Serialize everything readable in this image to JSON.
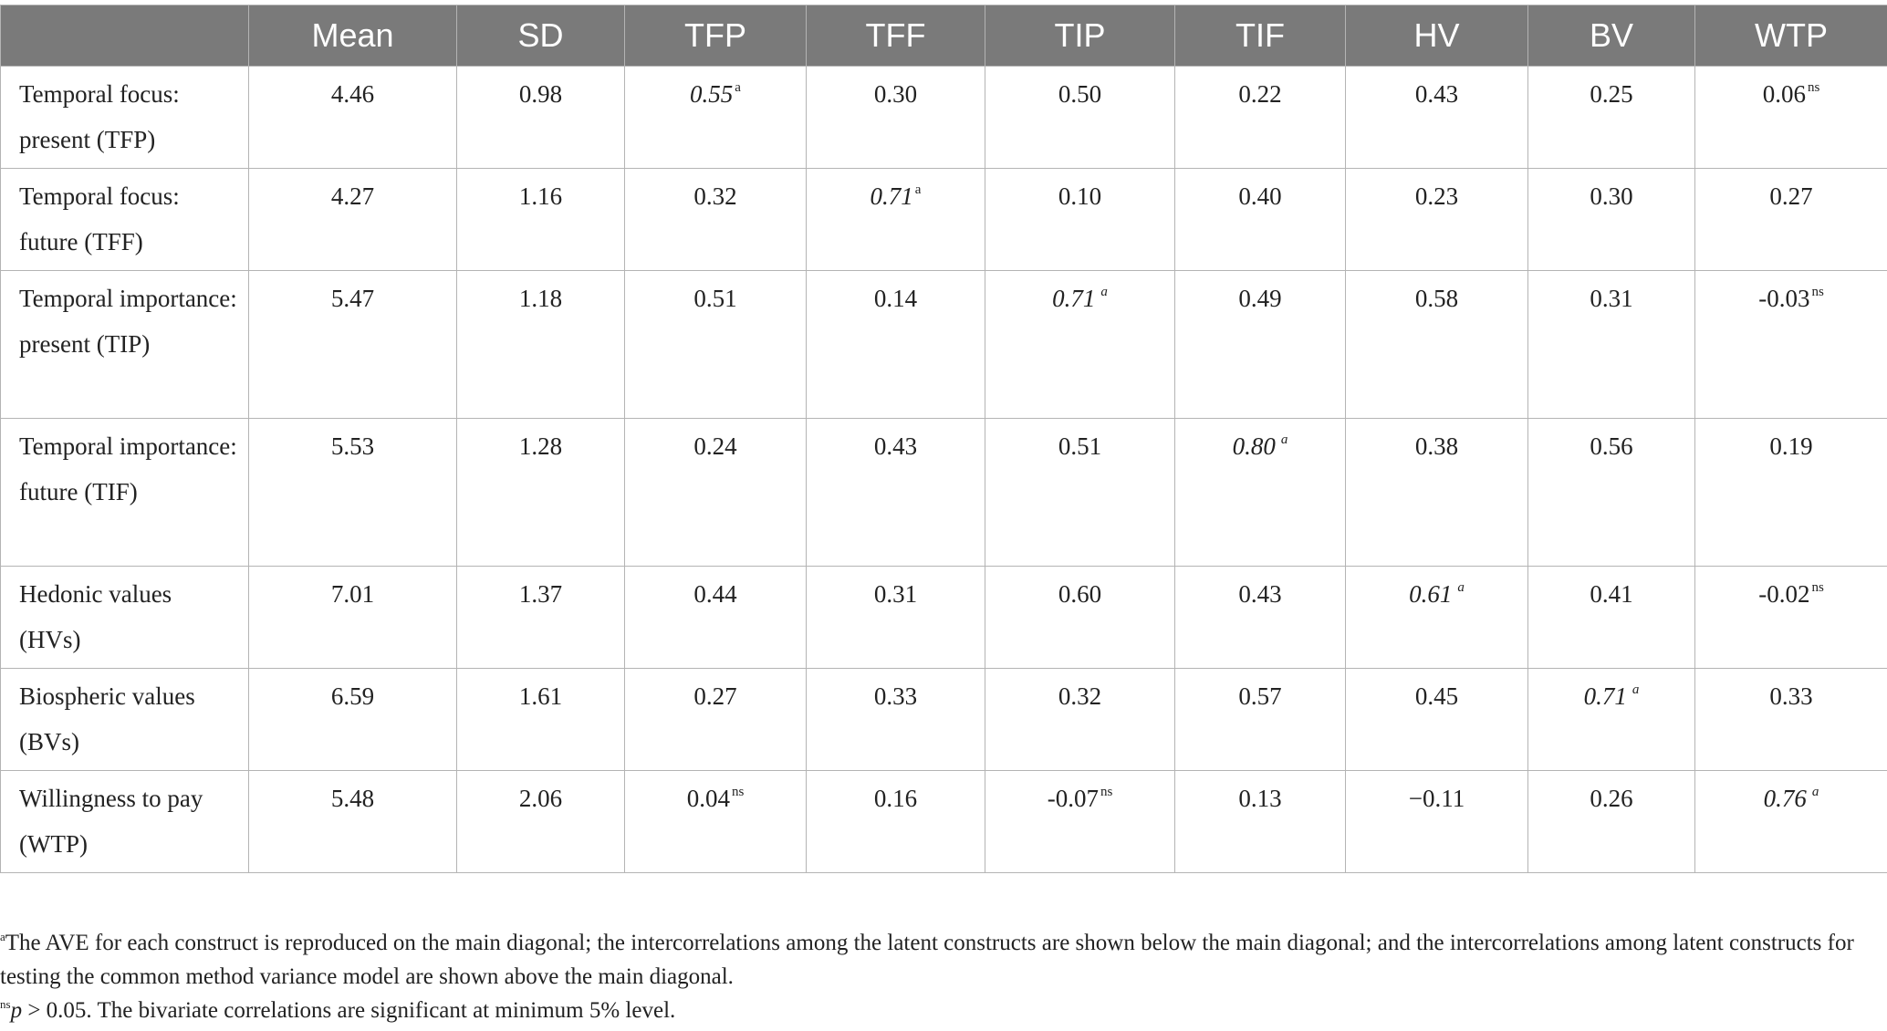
{
  "table": {
    "headers": [
      "",
      "Mean",
      "SD",
      "TFP",
      "TFF",
      "TIP",
      "TIF",
      "HV",
      "BV",
      "WTP"
    ],
    "rows": [
      {
        "label": "Temporal focus: present (TFP)",
        "cells": [
          {
            "v": "4.46",
            "sup": ""
          },
          {
            "v": "0.98",
            "sup": ""
          },
          {
            "v": "0.55",
            "sup": "a",
            "diag": true
          },
          {
            "v": "0.30",
            "sup": ""
          },
          {
            "v": "0.50",
            "sup": ""
          },
          {
            "v": "0.22",
            "sup": ""
          },
          {
            "v": "0.43",
            "sup": ""
          },
          {
            "v": "0.25",
            "sup": ""
          },
          {
            "v": "0.06",
            "sup": "ns"
          }
        ]
      },
      {
        "label": "Temporal focus: future (TFF)",
        "cells": [
          {
            "v": "4.27",
            "sup": ""
          },
          {
            "v": "1.16",
            "sup": ""
          },
          {
            "v": "0.32",
            "sup": ""
          },
          {
            "v": "0.71",
            "sup": "a",
            "diag": true
          },
          {
            "v": "0.10",
            "sup": ""
          },
          {
            "v": "0.40",
            "sup": ""
          },
          {
            "v": "0.23",
            "sup": ""
          },
          {
            "v": "0.30",
            "sup": ""
          },
          {
            "v": "0.27",
            "sup": ""
          }
        ]
      },
      {
        "label": "Temporal importance: present (TIP)",
        "cells": [
          {
            "v": "5.47",
            "sup": ""
          },
          {
            "v": "1.18",
            "sup": ""
          },
          {
            "v": "0.51",
            "sup": ""
          },
          {
            "v": "0.14",
            "sup": ""
          },
          {
            "v": "0.71",
            "sup": "a",
            "diag": true
          },
          {
            "v": "0.49",
            "sup": ""
          },
          {
            "v": "0.58",
            "sup": ""
          },
          {
            "v": "0.31",
            "sup": ""
          },
          {
            "v": "-0.03",
            "sup": "ns"
          }
        ]
      },
      {
        "label": "Temporal importance: future (TIF)",
        "cells": [
          {
            "v": "5.53",
            "sup": ""
          },
          {
            "v": "1.28",
            "sup": ""
          },
          {
            "v": "0.24",
            "sup": ""
          },
          {
            "v": "0.43",
            "sup": ""
          },
          {
            "v": "0.51",
            "sup": ""
          },
          {
            "v": "0.80",
            "sup": "a",
            "diag": true
          },
          {
            "v": "0.38",
            "sup": ""
          },
          {
            "v": "0.56",
            "sup": ""
          },
          {
            "v": "0.19",
            "sup": ""
          }
        ]
      },
      {
        "label": "Hedonic values (HVs)",
        "cells": [
          {
            "v": "7.01",
            "sup": ""
          },
          {
            "v": "1.37",
            "sup": ""
          },
          {
            "v": "0.44",
            "sup": ""
          },
          {
            "v": "0.31",
            "sup": ""
          },
          {
            "v": "0.60",
            "sup": ""
          },
          {
            "v": "0.43",
            "sup": ""
          },
          {
            "v": "0.61",
            "sup": "a",
            "diag": true
          },
          {
            "v": "0.41",
            "sup": ""
          },
          {
            "v": "-0.02",
            "sup": "ns"
          }
        ]
      },
      {
        "label": "Biospheric values (BVs)",
        "cells": [
          {
            "v": "6.59",
            "sup": ""
          },
          {
            "v": "1.61",
            "sup": ""
          },
          {
            "v": "0.27",
            "sup": ""
          },
          {
            "v": "0.33",
            "sup": ""
          },
          {
            "v": "0.32",
            "sup": ""
          },
          {
            "v": "0.57",
            "sup": ""
          },
          {
            "v": "0.45",
            "sup": ""
          },
          {
            "v": "0.71",
            "sup": "a",
            "diag": true
          },
          {
            "v": "0.33",
            "sup": ""
          }
        ]
      },
      {
        "label": "Willingness to pay (WTP)",
        "cells": [
          {
            "v": "5.48",
            "sup": ""
          },
          {
            "v": "2.06",
            "sup": ""
          },
          {
            "v": "0.04",
            "sup": "ns"
          },
          {
            "v": "0.16",
            "sup": ""
          },
          {
            "v": "-0.07",
            "sup": "ns"
          },
          {
            "v": "0.13",
            "sup": ""
          },
          {
            "v": "−0.11",
            "sup": ""
          },
          {
            "v": "0.26",
            "sup": ""
          },
          {
            "v": "0.76",
            "sup": "a",
            "diag": true
          }
        ]
      }
    ]
  },
  "footnotes": {
    "a_mark": "a",
    "a_text": "The AVE for each construct is reproduced on the main diagonal; the intercorrelations among the latent constructs are shown below the main diagonal; and the intercorrelations among latent constructs for testing the common method variance model are shown above the main diagonal.",
    "ns_mark": "ns",
    "ns_var": "p",
    "ns_text": " > 0.05. The bivariate correlations are significant at minimum 5% level."
  }
}
